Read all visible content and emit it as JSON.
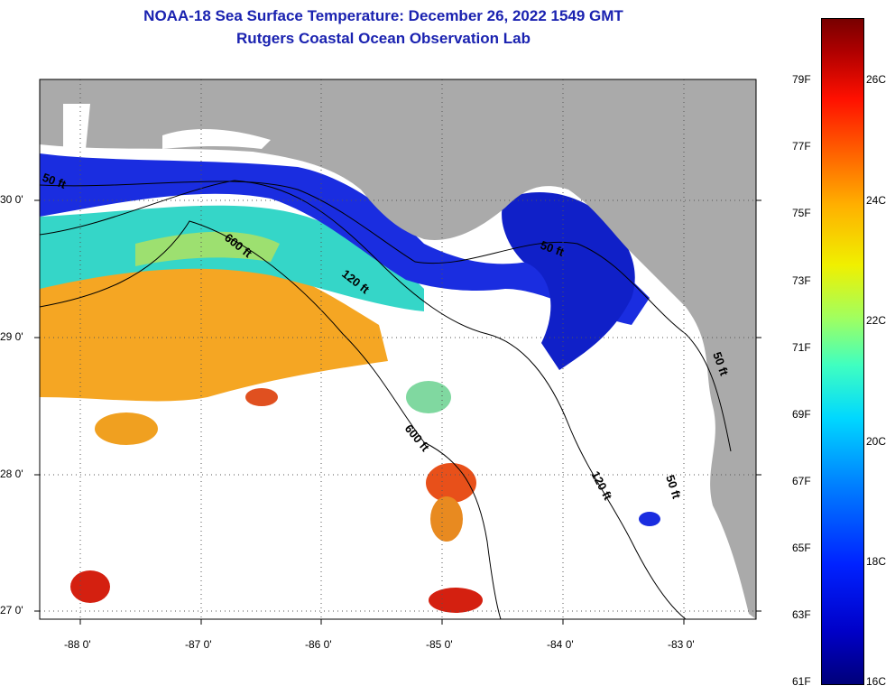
{
  "title": "NOAA-18 Sea Surface Temperature:  December 26, 2022 1549 GMT",
  "subtitle": "Rutgers Coastal Ocean Observation Lab",
  "map": {
    "lat_labels": [
      "30 0'",
      "29 0'",
      "28 0'",
      "27 0'"
    ],
    "lon_labels": [
      "-88 0'",
      "-87 0'",
      "-86 0'",
      "-85 0'",
      "-84 0'",
      "-83 0'"
    ],
    "contour_labels": [
      "50 ft",
      "600 ft",
      "120 ft",
      "50 ft",
      "600 ft",
      "120 ft",
      "50 ft",
      "50 ft"
    ]
  },
  "colorbar": {
    "fahrenheit": [
      "79F",
      "77F",
      "75F",
      "73F",
      "71F",
      "69F",
      "67F",
      "65F",
      "63F",
      "61F"
    ],
    "celsius": [
      "26C",
      "24C",
      "22C",
      "20C",
      "18C",
      "16C"
    ]
  },
  "colors": {
    "title": "#1a22b0",
    "land": "#aaaaaa",
    "cloud": "#ffffff"
  }
}
